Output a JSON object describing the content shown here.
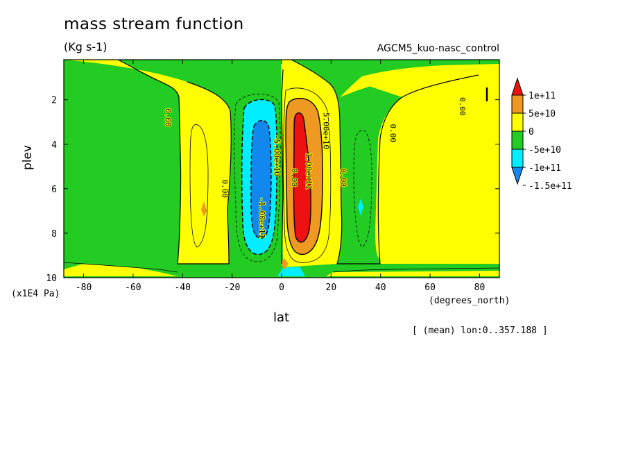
{
  "header": {
    "title": "mass stream function",
    "units": "(Kg s-1)",
    "run_name": "AGCM5_kuo-nasc_control",
    "note": "[ (mean) lon:0..357.188 ]"
  },
  "colors": {
    "red": "#ee1111",
    "orange": "#ee9922",
    "yellow": "#ffff00",
    "green": "#22cc22",
    "cyan": "#00eeff",
    "blue": "#1188ee"
  },
  "chart_data": {
    "type": "heatmap",
    "title": "mass stream function",
    "subtitle": "(Kg s-1)",
    "xlabel": "lat",
    "x_unit": "(degrees_north)",
    "ylabel": "plev",
    "y_unit": "(x1E4 Pa)",
    "xlim": [
      -88,
      88
    ],
    "ylim": [
      10,
      0.2
    ],
    "x_ticks": [
      -80,
      -60,
      -40,
      -20,
      0,
      20,
      40,
      60,
      80
    ],
    "y_ticks": [
      2,
      4,
      6,
      8,
      10
    ],
    "colorbar": {
      "labels": [
        "1e+11",
        "5e+10",
        "0",
        "-5e+10",
        "-1e+11",
        "-1.5e+11"
      ],
      "levels": [
        100000000000.0,
        50000000000.0,
        0,
        -50000000000.0,
        -100000000000.0,
        -150000000000.0
      ]
    },
    "contour_labels": [
      {
        "text": "1.00e+11",
        "lat": 10,
        "plev": 5.2
      },
      {
        "text": "5.00e+10",
        "lat": 17,
        "plev": 3.4
      },
      {
        "text": "0.00",
        "lat": 4,
        "plev": 5.5
      },
      {
        "text": "0.00",
        "lat": 24,
        "plev": 5.5
      },
      {
        "text": "-1.00e+11",
        "lat": -9,
        "plev": 7.3
      },
      {
        "text": "-5.00e+10",
        "lat": -3,
        "plev": 4.5
      },
      {
        "text": "0.00",
        "lat": -47,
        "plev": 2.8
      },
      {
        "text": "0.00",
        "lat": -24,
        "plev": 6.0
      },
      {
        "text": "0.00",
        "lat": 44,
        "plev": 3.5
      },
      {
        "text": "0.00",
        "lat": 72,
        "plev": 2.3
      }
    ]
  }
}
